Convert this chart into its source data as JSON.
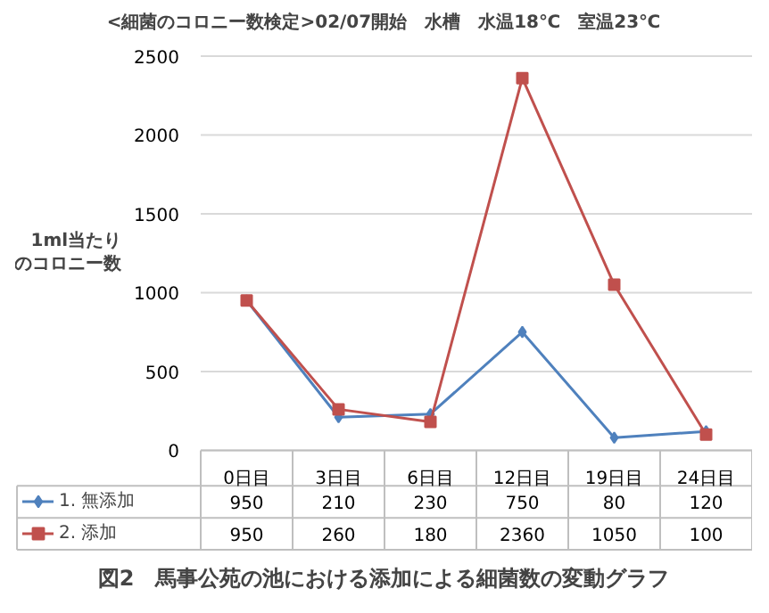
{
  "chart_data": {
    "type": "line",
    "title": "<細菌のコロニー数検定>02/07開始　水槽　水温18℃　室温23℃",
    "ylabel": "1ml当たりのコロニー数",
    "categories": [
      "0日目",
      "3日目",
      "6日目",
      "12日目",
      "19日目",
      "24日目"
    ],
    "series": [
      {
        "name": "1. 無添加",
        "color": "#4f81bd",
        "marker": "diamond",
        "values": [
          950,
          210,
          230,
          750,
          80,
          120
        ]
      },
      {
        "name": "2. 添加",
        "color": "#c0504d",
        "marker": "square",
        "values": [
          950,
          260,
          180,
          2360,
          1050,
          100
        ]
      }
    ],
    "ylim": [
      0,
      2500
    ],
    "yticks": [
      0,
      500,
      1000,
      1500,
      2000,
      2500
    ],
    "grid": "y",
    "data_labels": true,
    "legend": "bottom left",
    "annotations": [
      "図2　馬事公苑の池における添加による細菌数の変動グラフ"
    ]
  }
}
